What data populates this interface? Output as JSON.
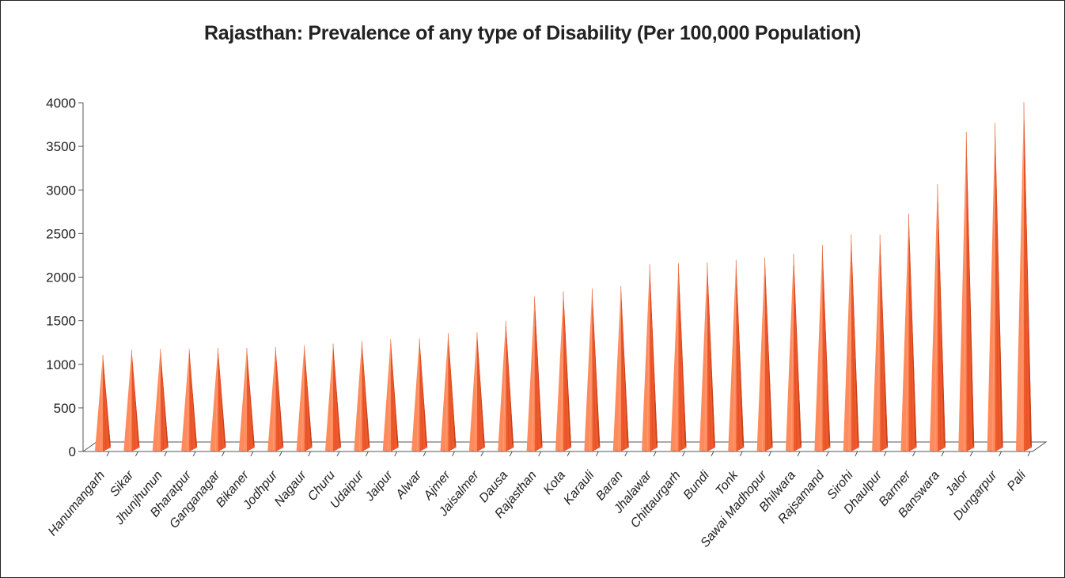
{
  "chart_data": {
    "type": "bar",
    "title": "Rajasthan: Prevalence of any type of Disability (Per 100,000 Population)",
    "xlabel": "",
    "ylabel": "",
    "ylim": [
      0,
      4000
    ],
    "y_ticks": [
      "0",
      "500",
      "1000",
      "1500",
      "2000",
      "2500",
      "3000",
      "3500",
      "4000"
    ],
    "grid": false,
    "bar_style": "3d-cone",
    "colors": {
      "bar_main": "#ee5a2c",
      "bar_light": "#ff8a5c",
      "bar_dark": "#c8401a",
      "axis": "#555555"
    },
    "categories": [
      "Hanumangarh",
      "Sikar",
      "Jhunjhunun",
      "Bharatpur",
      "Ganganagar",
      "Bikaner",
      "Jodhpur",
      "Nagaur",
      "Churu",
      "Udaipur",
      "Jaipur",
      "Alwar",
      "Ajmer",
      "Jaisalmer",
      "Dausa",
      "Rajasthan",
      "Kota",
      "Karauli",
      "Baran",
      "Jhalawar",
      "Chittaurgarh",
      "Bundi",
      "Tonk",
      "Sawai Madhopur",
      "Bhilwara",
      "Rajsamand",
      "Sirohi",
      "Dhaulpur",
      "Barmer",
      "Banswara",
      "Jalor",
      "Dungarpur",
      "Pali"
    ],
    "values": [
      1080,
      1140,
      1150,
      1150,
      1160,
      1160,
      1170,
      1190,
      1210,
      1240,
      1260,
      1270,
      1330,
      1340,
      1470,
      1750,
      1810,
      1840,
      1870,
      2120,
      2130,
      2140,
      2170,
      2200,
      2240,
      2340,
      2460,
      2460,
      2700,
      3040,
      3640,
      3740,
      3980
    ]
  }
}
